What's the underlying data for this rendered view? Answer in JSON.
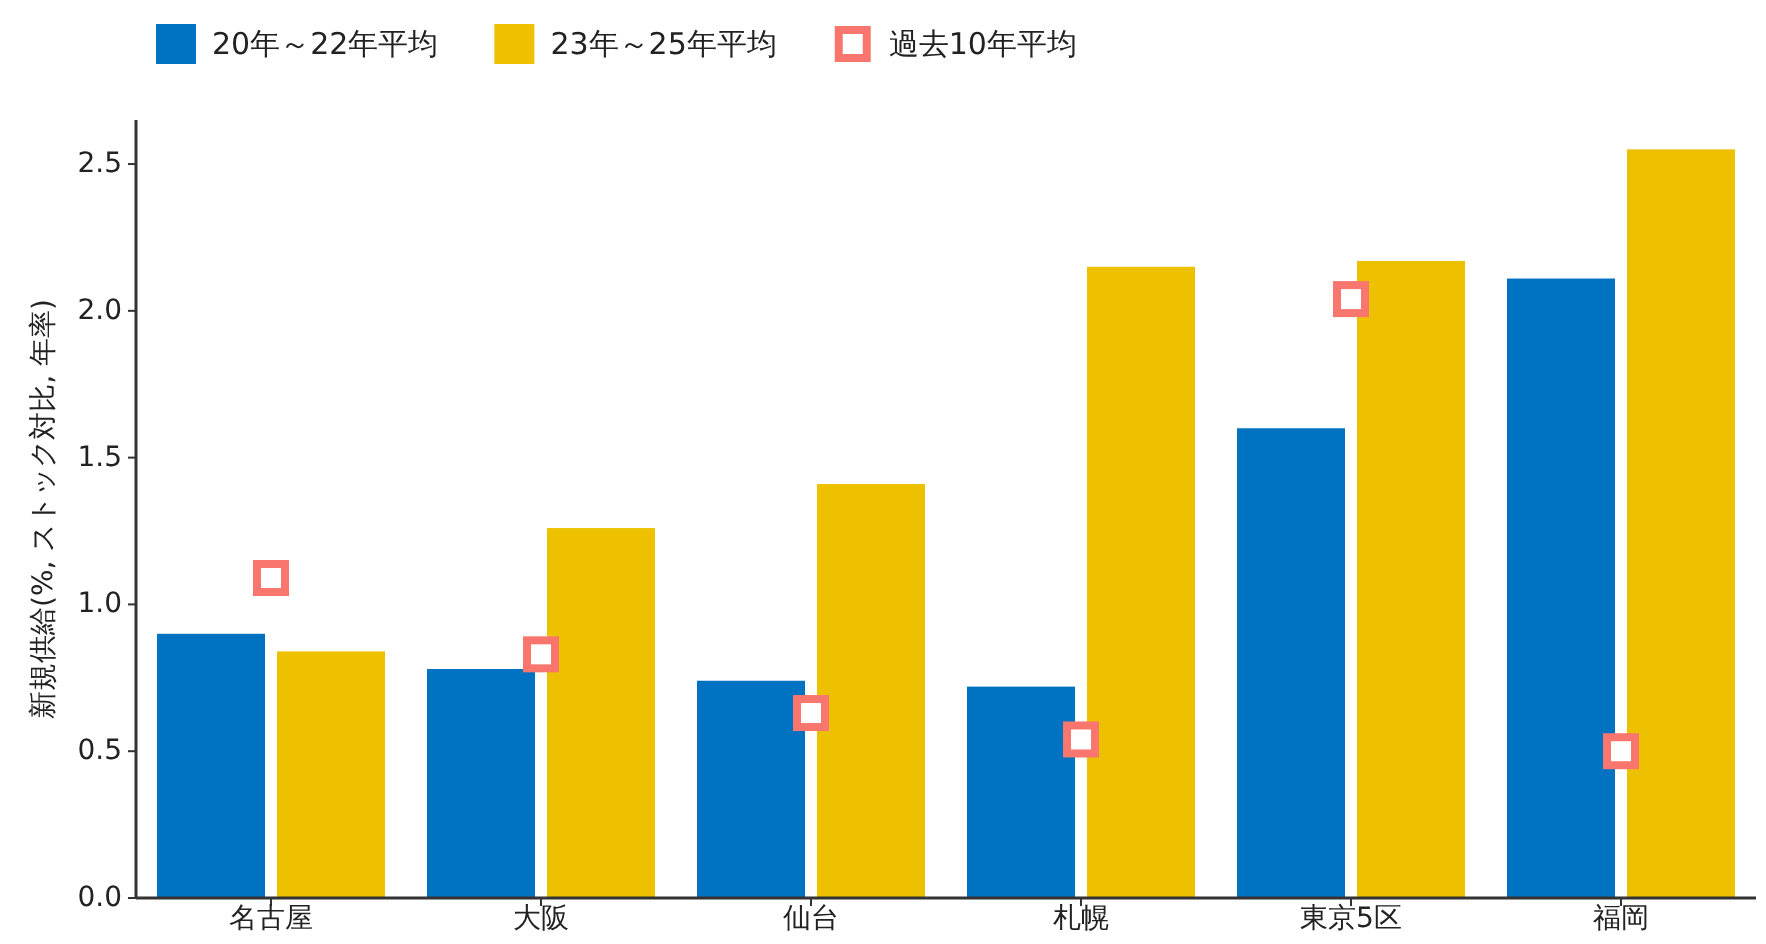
{
  "chart_data": {
    "type": "bar",
    "ylabel": "新規供給(%, ストック対比, 年率)",
    "categories": [
      "名古屋",
      "大阪",
      "仙台",
      "札幌",
      "東京5区",
      "福岡"
    ],
    "series": [
      {
        "name": "20年～22年平均",
        "color": "#0072c2",
        "values": [
          0.9,
          0.78,
          0.74,
          0.72,
          1.6,
          2.11
        ]
      },
      {
        "name": "23年～25年平均",
        "color": "#edc000",
        "values": [
          0.84,
          1.26,
          1.41,
          2.15,
          2.17,
          2.55
        ]
      },
      {
        "name": "過去10年平均",
        "type": "scatter",
        "marker": "square",
        "color": "#f8766d",
        "x": [
          "名古屋",
          "大阪",
          "仙台",
          "札幌",
          "東京5区",
          "福岡"
        ],
        "values": [
          1.09,
          0.83,
          0.63,
          0.54,
          2.04,
          0.5
        ]
      }
    ],
    "ylim": [
      0,
      2.65
    ],
    "yticks": [
      {
        "value": 0,
        "label": "0.0"
      },
      0.5,
      {
        "value": 1,
        "label": "1.0"
      },
      1.5,
      {
        "value": 2,
        "label": "2.0"
      },
      2.5
    ],
    "legend": "top",
    "grid": false
  }
}
